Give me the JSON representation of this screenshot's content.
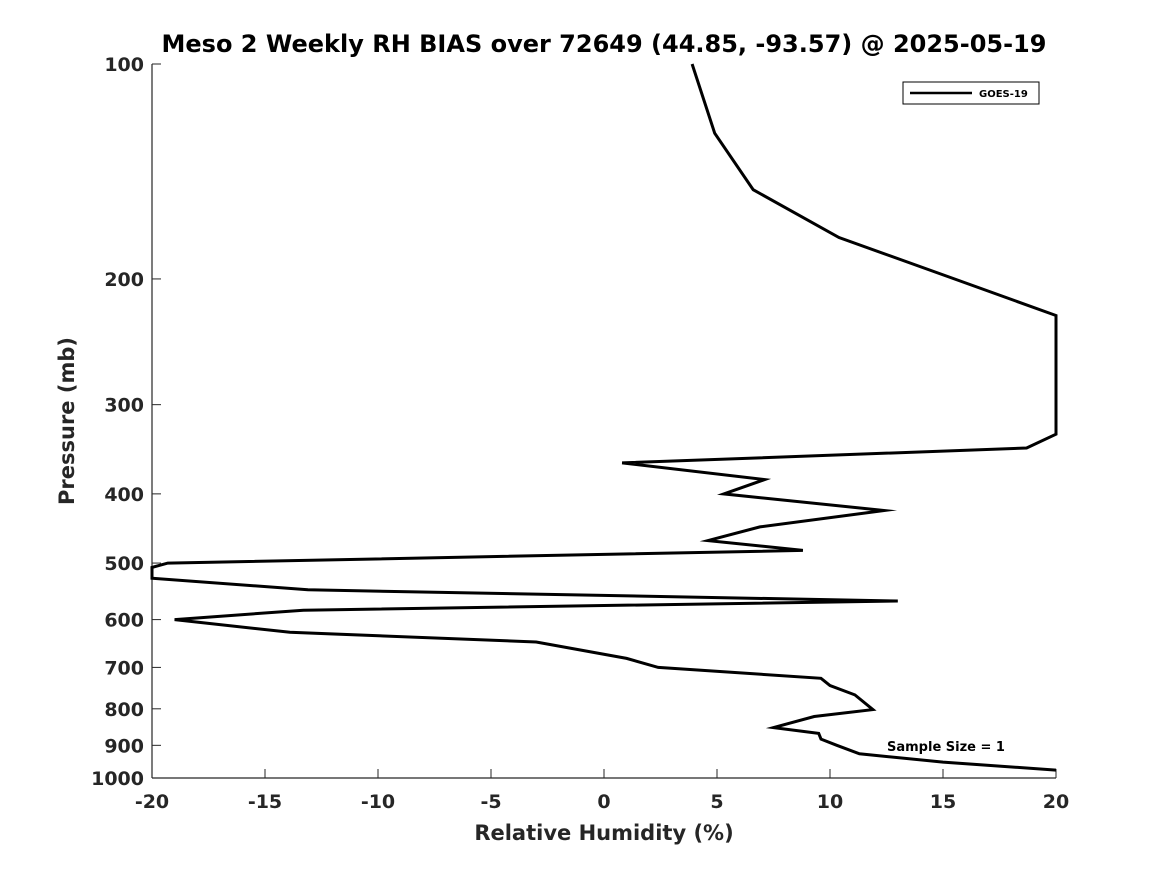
{
  "chart_data": {
    "type": "line",
    "title": "Meso 2 Weekly RH BIAS over 72649 (44.85, -93.57) @ 2025-05-19",
    "xlabel": "Relative Humidity (%)",
    "ylabel": "Pressure (mb)",
    "xlim": [
      -20,
      20
    ],
    "ylim": [
      100,
      1000
    ],
    "y_scale": "log",
    "y_reversed": true,
    "grid": false,
    "legend_position": "top-right",
    "xticks": [
      -20,
      -15,
      -10,
      -5,
      0,
      5,
      10,
      15,
      20
    ],
    "xtick_labels": [
      "-20",
      "-15",
      "-10",
      "-5",
      "0",
      "5",
      "10",
      "15",
      "20"
    ],
    "yticks": [
      100,
      200,
      300,
      400,
      500,
      600,
      700,
      800,
      900,
      1000
    ],
    "ytick_labels": [
      "100",
      "200",
      "300",
      "400",
      "500",
      "600",
      "700",
      "800",
      "900",
      "1000"
    ],
    "annotation": "Sample Size = 1",
    "series": [
      {
        "name": "GOES-19",
        "color": "#000000",
        "points": [
          {
            "x": 3.9,
            "y": 100
          },
          {
            "x": 4.9,
            "y": 125
          },
          {
            "x": 6.6,
            "y": 150
          },
          {
            "x": 10.4,
            "y": 175
          },
          {
            "x": 15.5,
            "y": 200
          },
          {
            "x": 20.0,
            "y": 225
          },
          {
            "x": 20.0,
            "y": 330
          },
          {
            "x": 18.7,
            "y": 345
          },
          {
            "x": 0.8,
            "y": 362
          },
          {
            "x": 7.1,
            "y": 382
          },
          {
            "x": 5.3,
            "y": 400
          },
          {
            "x": 12.4,
            "y": 422
          },
          {
            "x": 6.9,
            "y": 445
          },
          {
            "x": 4.6,
            "y": 465
          },
          {
            "x": 8.8,
            "y": 480
          },
          {
            "x": -19.3,
            "y": 500
          },
          {
            "x": -20.0,
            "y": 507
          },
          {
            "x": -20.0,
            "y": 525
          },
          {
            "x": -13.1,
            "y": 545
          },
          {
            "x": 13.0,
            "y": 565
          },
          {
            "x": -13.3,
            "y": 582
          },
          {
            "x": -19.0,
            "y": 600
          },
          {
            "x": -13.9,
            "y": 625
          },
          {
            "x": -3.0,
            "y": 645
          },
          {
            "x": 1.0,
            "y": 680
          },
          {
            "x": 2.4,
            "y": 700
          },
          {
            "x": 9.6,
            "y": 725
          },
          {
            "x": 10.0,
            "y": 742
          },
          {
            "x": 11.1,
            "y": 765
          },
          {
            "x": 11.9,
            "y": 802
          },
          {
            "x": 9.3,
            "y": 820
          },
          {
            "x": 7.5,
            "y": 850
          },
          {
            "x": 9.5,
            "y": 866
          },
          {
            "x": 9.6,
            "y": 882
          },
          {
            "x": 10.3,
            "y": 900
          },
          {
            "x": 11.3,
            "y": 925
          },
          {
            "x": 15.0,
            "y": 950
          },
          {
            "x": 20.0,
            "y": 975
          }
        ]
      }
    ]
  }
}
